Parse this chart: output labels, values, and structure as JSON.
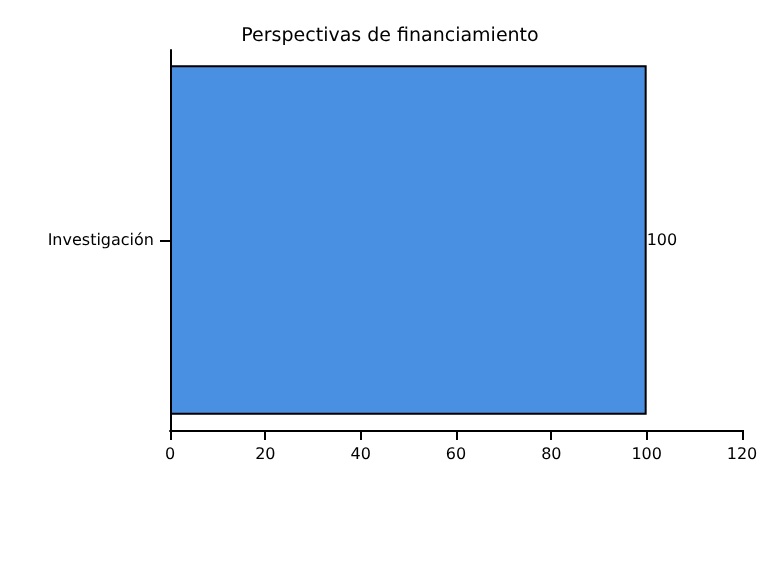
{
  "chart_data": {
    "type": "bar",
    "orientation": "horizontal",
    "title": "Perspectivas de financiamiento",
    "categories": [
      "Investigación"
    ],
    "values": [
      100
    ],
    "color": "#4a90e2",
    "xlim": [
      0,
      120
    ],
    "xticks": [
      0,
      20,
      40,
      60,
      80,
      100,
      120
    ],
    "data_labels": true
  }
}
